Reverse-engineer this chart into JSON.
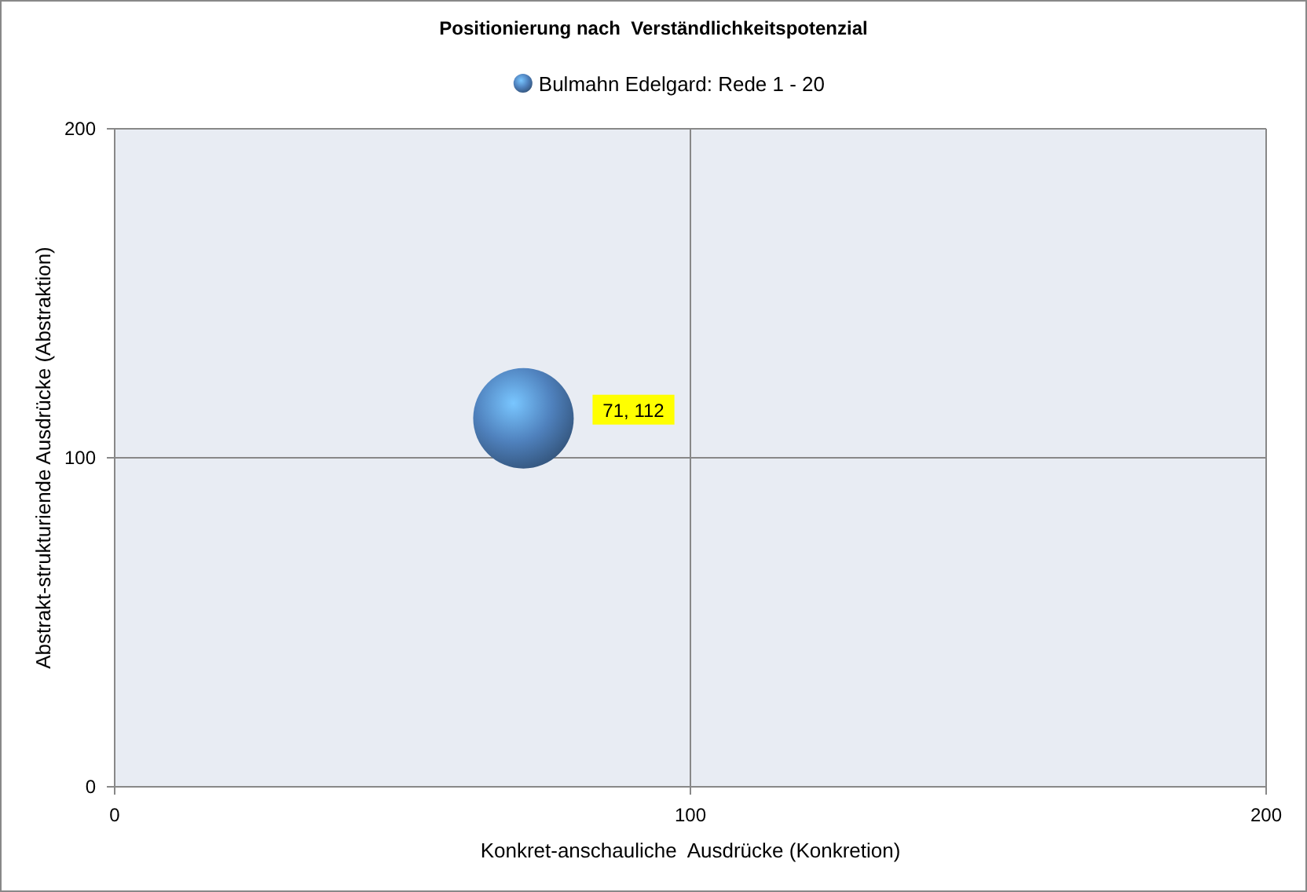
{
  "chart_data": {
    "type": "bubble",
    "title": "Positionierung nach  Verständlichkeitspotenzial",
    "xlabel": "Konkret-anschauliche  Ausdrücke (Konkretion)",
    "ylabel": "Abstrakt-strukturiende Ausdrücke (Abstraktion)",
    "x": [
      71
    ],
    "series": [
      {
        "name": "Bulmahn Edelgard: Rede 1 - 20",
        "color": "#4f81bd",
        "values": [
          112
        ],
        "sizes": [
          1
        ],
        "value_labels": [
          "71, 112"
        ]
      }
    ],
    "xlim": [
      0,
      200
    ],
    "xticks": [
      0,
      100,
      200
    ],
    "ylim": [
      0,
      200
    ],
    "yticks": [
      0,
      100,
      200
    ],
    "grid": true,
    "legend": "top"
  }
}
